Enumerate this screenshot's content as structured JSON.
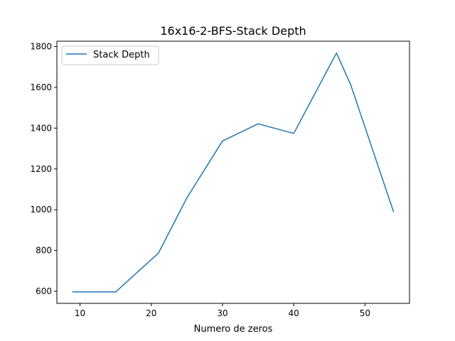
{
  "chart_data": {
    "type": "line",
    "title": "16x16-2-BFS-Stack Depth",
    "xlabel": "Numero de zeros",
    "ylabel": "",
    "xlim": [
      6.75,
      56.25
    ],
    "ylim": [
      541,
      1826
    ],
    "xticks": [
      10,
      20,
      30,
      40,
      50
    ],
    "yticks": [
      600,
      800,
      1000,
      1200,
      1400,
      1600,
      1800
    ],
    "grid": false,
    "legend_position": "upper left",
    "series": [
      {
        "name": "Stack Depth",
        "color": "#1f77b4",
        "x": [
          9,
          15,
          21,
          25,
          30,
          35,
          40,
          46,
          48,
          54
        ],
        "y": [
          597,
          597,
          787,
          1058,
          1337,
          1421,
          1374,
          1768,
          1612,
          991
        ]
      }
    ]
  }
}
